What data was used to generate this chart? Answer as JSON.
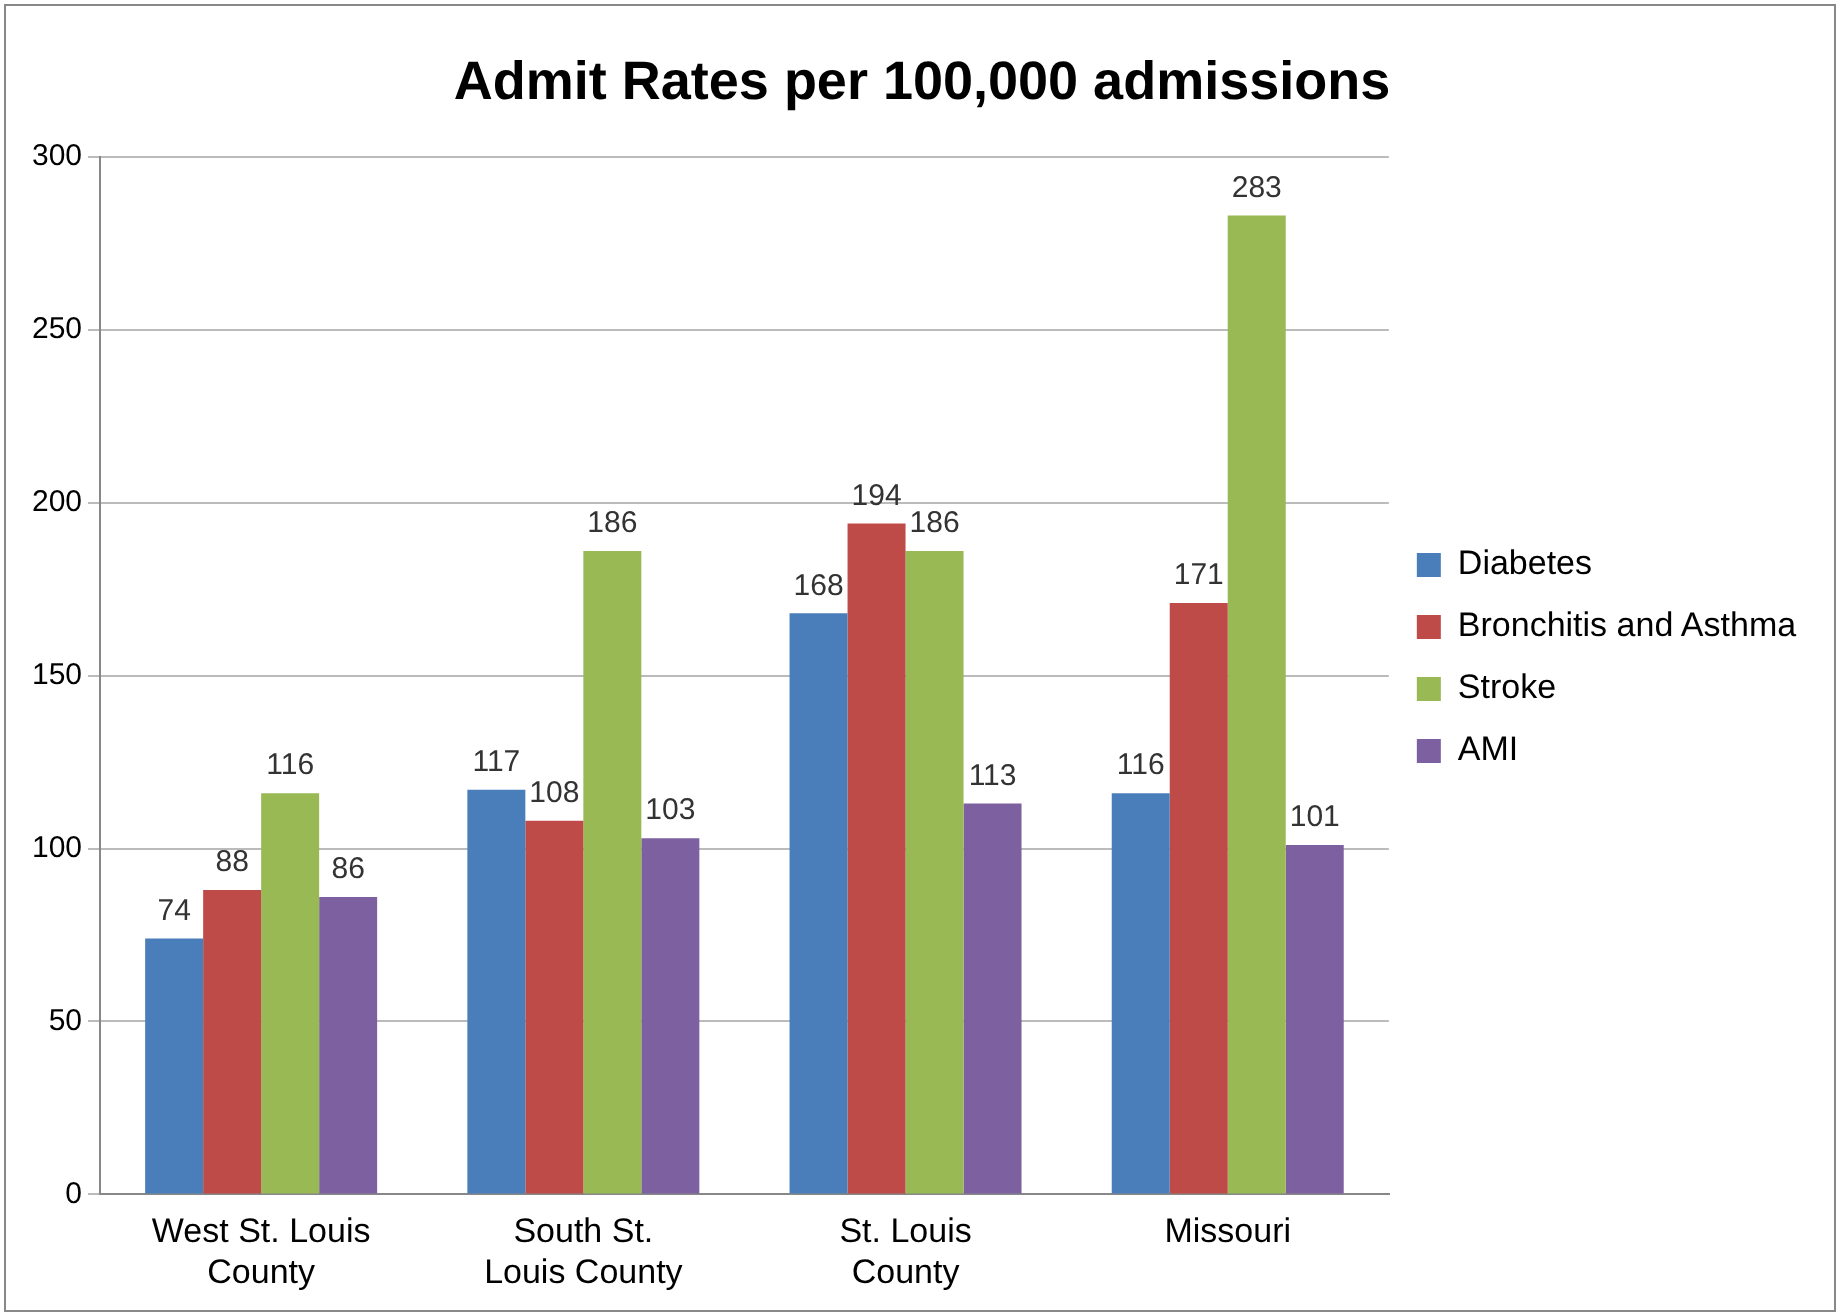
{
  "chart_data": {
    "type": "bar",
    "title": "Admit Rates per 100,000 admissions",
    "categories": [
      "West St. Louis County",
      "South St. Louis County",
      "St. Louis County",
      "Missouri"
    ],
    "series": [
      {
        "name": "Diabetes",
        "color": "#4a7ebb",
        "values": [
          74,
          117,
          168,
          116
        ]
      },
      {
        "name": "Bronchitis and Asthma",
        "color": "#be4b48",
        "values": [
          88,
          108,
          194,
          171
        ]
      },
      {
        "name": "Stroke",
        "color": "#98b954",
        "values": [
          116,
          186,
          186,
          283
        ]
      },
      {
        "name": "AMI",
        "color": "#7d60a0",
        "values": [
          86,
          103,
          113,
          101
        ]
      }
    ],
    "ylim": [
      0,
      300
    ],
    "yticks": [
      0,
      50,
      100,
      150,
      200,
      250,
      300
    ],
    "grid": "y",
    "legend": "right",
    "data_labels": true
  }
}
